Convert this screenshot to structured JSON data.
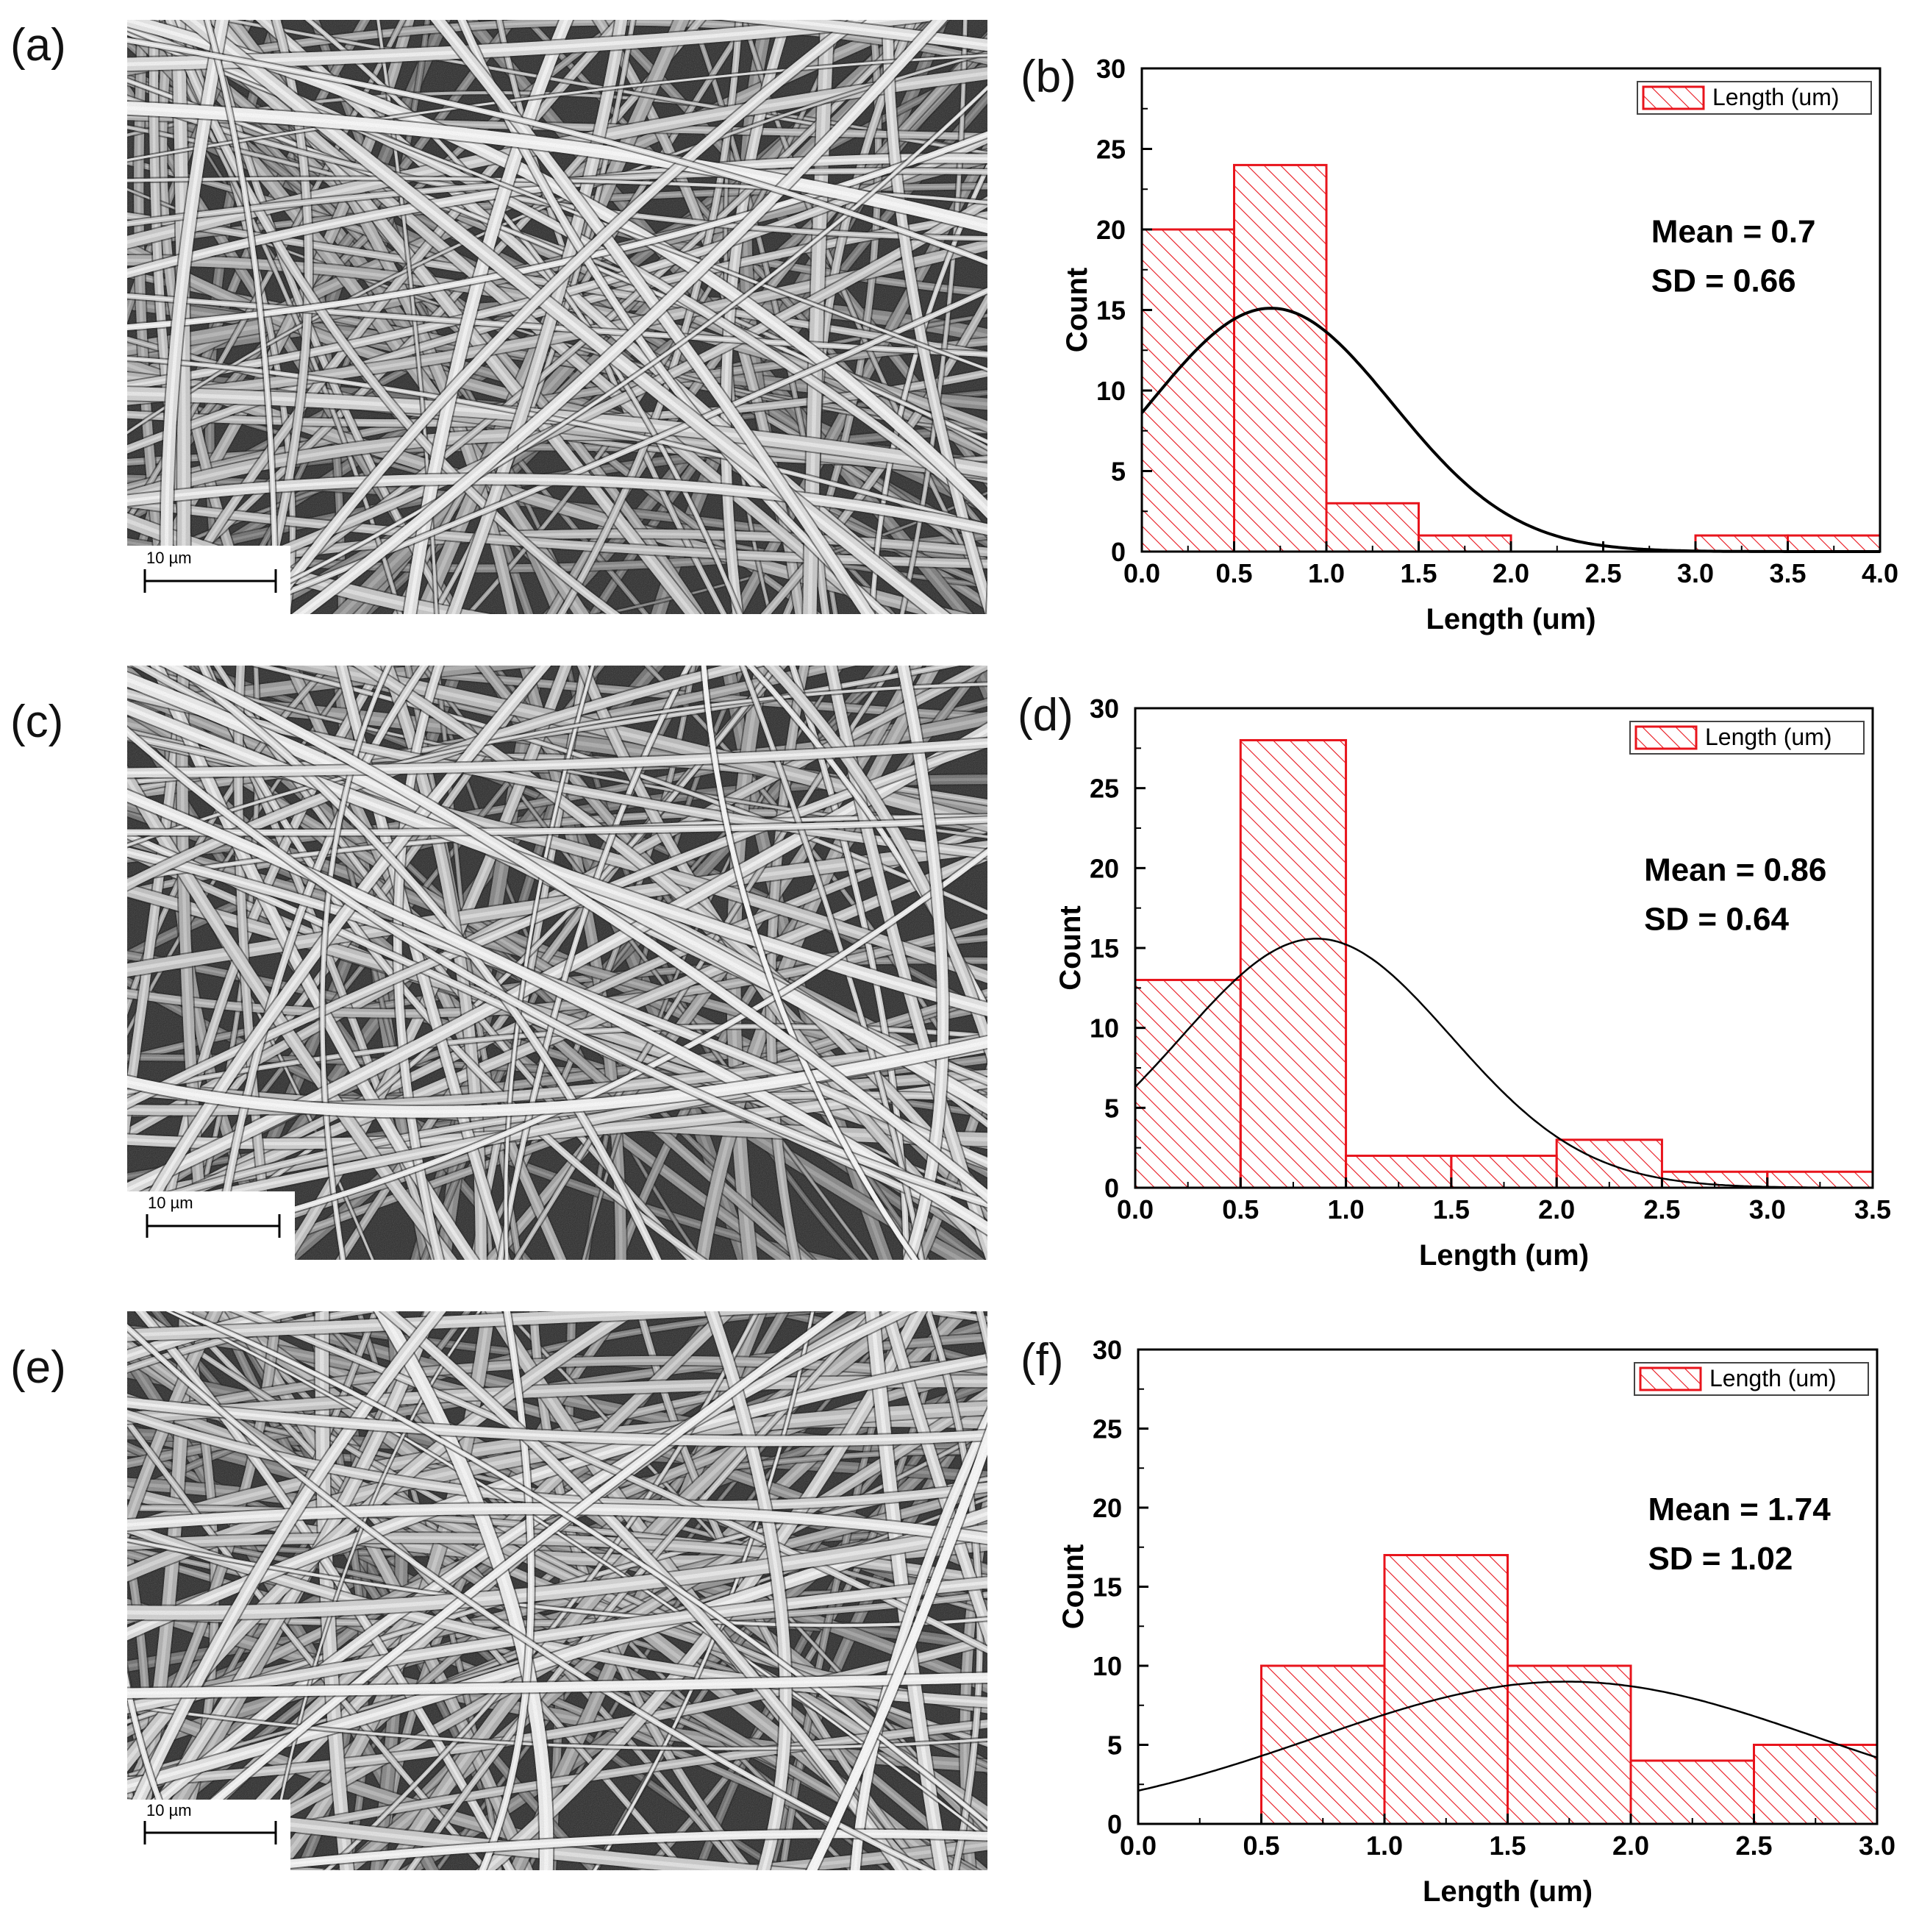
{
  "panels": [
    {
      "label": "(a)",
      "scale_label": "10 µm"
    },
    {
      "label": "(c)",
      "scale_label": "10 µm"
    },
    {
      "label": "(e)",
      "scale_label": "10 µm"
    }
  ],
  "chart_data": [
    {
      "panel": "(b)",
      "type": "bar",
      "xlabel": "Length (um)",
      "ylabel": "Count",
      "xlim": [
        0,
        4
      ],
      "ylim": [
        0,
        30
      ],
      "xticks": [
        "0.0",
        "0.5",
        "1.0",
        "1.5",
        "2.0",
        "2.5",
        "3.0",
        "3.5",
        "4.0"
      ],
      "yticks": [
        "0",
        "5",
        "10",
        "15",
        "20",
        "25",
        "30"
      ],
      "bin_width": 0.5,
      "bins": [
        {
          "x0": 0.0,
          "count": 20
        },
        {
          "x0": 0.5,
          "count": 24
        },
        {
          "x0": 1.0,
          "count": 3
        },
        {
          "x0": 1.5,
          "count": 1
        },
        {
          "x0": 2.0,
          "count": 0
        },
        {
          "x0": 2.5,
          "count": 0
        },
        {
          "x0": 3.0,
          "count": 1
        },
        {
          "x0": 3.5,
          "count": 1
        }
      ],
      "fit": {
        "type": "normal",
        "mean": 0.7,
        "sd": 0.66
      },
      "legend": {
        "label": "Length (um)",
        "position": "top-right"
      },
      "annotation": [
        "Mean = 0.7",
        "SD = 0.66"
      ],
      "colors": {
        "bar": "#e8141c",
        "fit": "#000000"
      }
    },
    {
      "panel": "(d)",
      "type": "bar",
      "xlabel": "Length (um)",
      "ylabel": "Count",
      "xlim": [
        0,
        3.5
      ],
      "ylim": [
        0,
        30
      ],
      "xticks": [
        "0.0",
        "0.5",
        "1.0",
        "1.5",
        "2.0",
        "2.5",
        "3.0",
        "3.5"
      ],
      "yticks": [
        "0",
        "5",
        "10",
        "15",
        "20",
        "25",
        "30"
      ],
      "bin_width": 0.5,
      "bins": [
        {
          "x0": 0.0,
          "count": 13
        },
        {
          "x0": 0.5,
          "count": 28
        },
        {
          "x0": 1.0,
          "count": 2
        },
        {
          "x0": 1.5,
          "count": 2
        },
        {
          "x0": 2.0,
          "count": 3
        },
        {
          "x0": 2.5,
          "count": 1
        },
        {
          "x0": 3.0,
          "count": 1
        }
      ],
      "fit": {
        "type": "normal",
        "mean": 0.86,
        "sd": 0.64
      },
      "legend": {
        "label": "Length (um)",
        "position": "top-right"
      },
      "annotation": [
        "Mean = 0.86",
        "SD = 0.64"
      ],
      "colors": {
        "bar": "#e8141c",
        "fit": "#000000"
      }
    },
    {
      "panel": "(f)",
      "type": "bar",
      "xlabel": "Length (um)",
      "ylabel": "Count",
      "xlim": [
        0,
        3
      ],
      "ylim": [
        0,
        30
      ],
      "xticks": [
        "0.0",
        "0.5",
        "1.0",
        "1.5",
        "2.0",
        "2.5",
        "3.0"
      ],
      "yticks": [
        "0",
        "5",
        "10",
        "15",
        "20",
        "25",
        "30"
      ],
      "bin_width": 0.5,
      "bins": [
        {
          "x0": 0.5,
          "count": 10
        },
        {
          "x0": 1.0,
          "count": 17
        },
        {
          "x0": 1.5,
          "count": 10
        },
        {
          "x0": 2.0,
          "count": 4
        },
        {
          "x0": 2.5,
          "count": 5
        }
      ],
      "fit": {
        "type": "normal",
        "mean": 1.74,
        "sd": 1.02
      },
      "legend": {
        "label": "Length (um)",
        "position": "top-right"
      },
      "annotation": [
        "Mean = 1.74",
        "SD = 1.02"
      ],
      "colors": {
        "bar": "#e8141c",
        "fit": "#000000"
      }
    }
  ]
}
